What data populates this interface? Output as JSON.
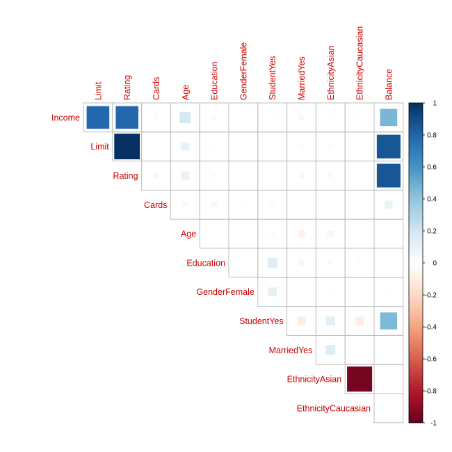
{
  "chart_data": {
    "type": "heatmap",
    "subtype": "correlation-matrix-upper-triangle-squares",
    "row_labels": [
      "Income",
      "Limit",
      "Rating",
      "Cards",
      "Age",
      "Education",
      "GenderFemale",
      "StudentYes",
      "MarriedYes",
      "EthnicityAsian",
      "EthnicityCaucasian"
    ],
    "col_labels": [
      "Limit",
      "Rating",
      "Cards",
      "Age",
      "Education",
      "GenderFemale",
      "StudentYes",
      "MarriedYes",
      "EthnicityAsian",
      "EthnicityCaucasian",
      "Balance"
    ],
    "values": [
      [
        0.79,
        0.79,
        -0.02,
        0.18,
        -0.03,
        0.01,
        0.02,
        0.04,
        -0.02,
        0.02,
        0.46
      ],
      [
        null,
        1.0,
        0.01,
        0.1,
        -0.02,
        0.01,
        -0.01,
        0.03,
        -0.03,
        0.0,
        0.86
      ],
      [
        null,
        null,
        0.05,
        0.1,
        -0.03,
        0.01,
        0.0,
        0.04,
        -0.04,
        0.0,
        0.86
      ],
      [
        null,
        null,
        null,
        0.04,
        -0.05,
        -0.02,
        -0.03,
        -0.01,
        0.0,
        0.0,
        0.09
      ],
      [
        null,
        null,
        null,
        null,
        0.0,
        0.0,
        -0.03,
        -0.07,
        -0.06,
        0.0,
        0.0
      ],
      [
        null,
        null,
        null,
        null,
        null,
        0.0,
        0.14,
        0.05,
        0.03,
        -0.03,
        -0.01
      ],
      [
        null,
        null,
        null,
        null,
        null,
        null,
        0.11,
        0.01,
        0.02,
        -0.01,
        0.02
      ],
      [
        null,
        null,
        null,
        null,
        null,
        null,
        null,
        -0.1,
        0.12,
        -0.1,
        0.45
      ],
      [
        null,
        null,
        null,
        null,
        null,
        null,
        null,
        null,
        0.14,
        0.02,
        0.0
      ],
      [
        null,
        null,
        null,
        null,
        null,
        null,
        null,
        null,
        null,
        -0.96,
        0.0
      ],
      [
        null,
        null,
        null,
        null,
        null,
        null,
        null,
        null,
        null,
        null,
        0.0
      ]
    ],
    "colorbar": {
      "range": [
        -1,
        1
      ],
      "ticks": [
        "1",
        "0.8",
        "0.6",
        "0.4",
        "0.2",
        "0",
        "-0.2",
        "-0.4",
        "-0.6",
        "-0.8",
        "-1"
      ],
      "colors": [
        "#053061",
        "#2166AC",
        "#4393C3",
        "#92C5DE",
        "#D1E5F0",
        "#FFFFFF",
        "#FDDBC7",
        "#F4A582",
        "#D6604D",
        "#B2182B",
        "#67001F"
      ]
    },
    "label_color": "#CC0000",
    "grid_color": "#BEBEBE"
  }
}
